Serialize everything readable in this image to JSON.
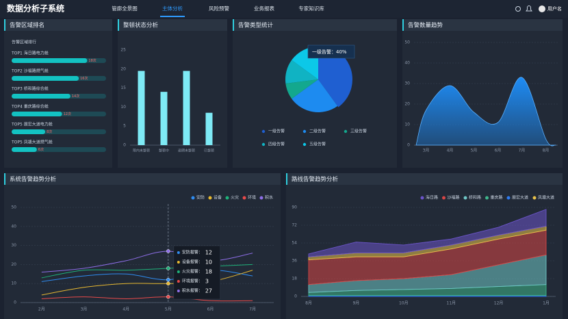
{
  "header": {
    "title": "数据分析子系统",
    "nav": [
      "管廊全景图",
      "主体分析",
      "风险预警",
      "业务报表",
      "专家知识库"
    ],
    "user": "用户名"
  },
  "chart_data": [
    {
      "type": "ranking",
      "title": "告警区域排名",
      "subtitle": "告警区域排行",
      "categories": [
        "TOP1 海日路电力舱",
        "TOP2 沙福路燃气舱",
        "TOP3 桥和路综合舱",
        "TOP4 重庆路综合舱",
        "TOP5 展宏大道电力舱",
        "TOP5 凤塘大道燃气舱"
      ],
      "values": [
        18,
        16,
        14,
        12,
        8,
        6
      ],
      "value_labels": [
        "18次",
        "16次",
        "14次",
        "12次",
        "8次",
        "6次"
      ],
      "color": "#13c2c2"
    },
    {
      "type": "bar",
      "title": "整顿状态分析",
      "categories": [
        "限内未整顿",
        "整顿中",
        "逾期未整顿",
        "已整顿"
      ],
      "values": [
        19.5,
        14,
        19.5,
        8.5
      ],
      "color": "#7eeaf5",
      "ylim": [
        0,
        25
      ],
      "yticks": [
        0,
        5,
        10,
        15,
        20,
        25
      ],
      "grid": false
    },
    {
      "type": "pie",
      "title": "告警类型统计",
      "categories": [
        "一级告警",
        "二级告警",
        "三级告警",
        "四级告警",
        "五级告警"
      ],
      "values": [
        40,
        25,
        8,
        12,
        15
      ],
      "colors": [
        "#1f5fd1",
        "#1d8bf0",
        "#13a88e",
        "#10b3c3",
        "#0cc8e8"
      ],
      "tooltip": {
        "label": "一级告警：",
        "value_label": "40%"
      }
    },
    {
      "type": "area",
      "title": "告警数量趋势",
      "categories": [
        "3月",
        "4月",
        "5月",
        "6月",
        "7月",
        "8月"
      ],
      "values": [
        17,
        29,
        16,
        11,
        33,
        3
      ],
      "color": "#1e8cf5",
      "ylim": [
        0,
        50
      ],
      "yticks": [
        0,
        10,
        20,
        30,
        40,
        50
      ],
      "grid": true
    },
    {
      "type": "line",
      "title": "系统告警趋势分析",
      "categories": [
        "2月",
        "3月",
        "4月",
        "5月",
        "6月",
        "7月"
      ],
      "ylim": [
        0,
        50
      ],
      "yticks": [
        0,
        10,
        20,
        30,
        40,
        50
      ],
      "grid": true,
      "legend": "top-right",
      "series": [
        {
          "name": "安防",
          "color": "#2f8cf0",
          "values": [
            11,
            14,
            15,
            12,
            17,
            14
          ]
        },
        {
          "name": "设备",
          "color": "#e8b931",
          "values": [
            4,
            8,
            10,
            10,
            11,
            17
          ]
        },
        {
          "name": "火灾",
          "color": "#1fb27a",
          "values": [
            13,
            17,
            17,
            18,
            19,
            20
          ]
        },
        {
          "name": "环境",
          "color": "#e84a4a",
          "values": [
            2,
            3,
            2,
            3,
            1,
            1
          ]
        },
        {
          "name": "积水",
          "color": "#8e6ee8",
          "values": [
            16,
            18,
            22,
            27,
            22,
            26
          ]
        }
      ],
      "tooltip_labels": [
        "安防报警：",
        "设备报警：",
        "火灾报警：",
        "环境报警：",
        "积水报警："
      ]
    },
    {
      "type": "stacked-area",
      "title": "路线告警趋势分析",
      "categories": [
        "8月",
        "9月",
        "10月",
        "11月",
        "12月",
        "1月"
      ],
      "ylim": [
        0,
        90
      ],
      "yticks": [
        0,
        18,
        36,
        54,
        72,
        90
      ],
      "grid": true,
      "legend": "top-right",
      "series": [
        {
          "name": "海日路",
          "color": "#6b54c9",
          "values": [
            3,
            11,
            8,
            6,
            8,
            17
          ]
        },
        {
          "name": "沙福路",
          "color": "#d84545",
          "values": [
            25,
            24,
            22,
            26,
            26,
            25
          ]
        },
        {
          "name": "桥和路",
          "color": "#6fc6c6",
          "values": [
            8,
            10,
            11,
            14,
            22,
            30
          ]
        },
        {
          "name": "重庆路",
          "color": "#3fb68b",
          "values": [
            3,
            5,
            6,
            7,
            9,
            11
          ]
        },
        {
          "name": "展宏大道",
          "color": "#2e7bf0",
          "values": [
            1,
            1,
            1,
            1,
            1,
            1
          ]
        },
        {
          "name": "凤塘大道",
          "color": "#e8c14a",
          "values": [
            3,
            4,
            4,
            4,
            4,
            4
          ]
        }
      ]
    }
  ]
}
